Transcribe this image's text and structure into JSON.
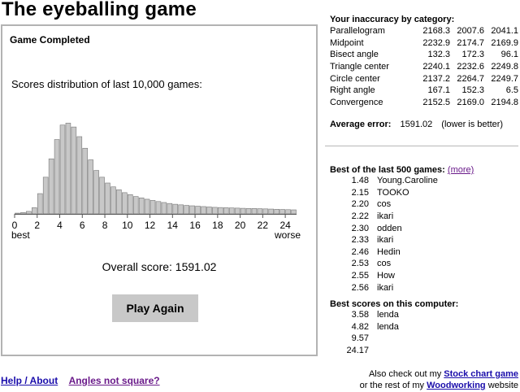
{
  "title": "The eyeballing game",
  "panel": {
    "heading": "Game Completed",
    "distribution_label": "Scores distribution of last 10,000 games:",
    "overall_label": "Overall score: 1591.02",
    "play_again": "Play Again"
  },
  "chart_data": {
    "type": "bar",
    "title": "Scores distribution of last 10,000 games:",
    "x_tick_labels": [
      "0",
      "2",
      "4",
      "6",
      "8",
      "10",
      "12",
      "14",
      "16",
      "18",
      "20",
      "22",
      "24"
    ],
    "x_left_label": "best",
    "x_right_label": "worse",
    "bin_width": 0.5,
    "x_start": 0,
    "values": [
      0.4,
      0.7,
      1.3,
      3.2,
      10.5,
      19.0,
      28.5,
      38.5,
      46.0,
      47.0,
      45.0,
      40.0,
      34.0,
      28.0,
      22.5,
      19.0,
      16.0,
      14.0,
      12.5,
      11.0,
      10.0,
      9.0,
      8.3,
      7.6,
      7.0,
      6.4,
      5.9,
      5.4,
      5.0,
      4.7,
      4.4,
      4.2,
      4.0,
      3.8,
      3.6,
      3.4,
      3.3,
      3.2,
      3.1,
      3.0,
      2.9,
      2.8,
      2.8,
      2.7,
      2.6,
      2.5,
      2.4,
      2.3,
      2.2,
      2.1
    ],
    "ylim": [
      0,
      48
    ],
    "bar_color": "#c8c8c8",
    "bar_border_color": "#777777"
  },
  "inaccuracy": {
    "heading": "Your inaccuracy by category:",
    "rows": [
      {
        "name": "Parallelogram",
        "v1": "2168.3",
        "v2": "2007.6",
        "v3": "2041.1"
      },
      {
        "name": "Midpoint",
        "v1": "2232.9",
        "v2": "2174.7",
        "v3": "2169.9"
      },
      {
        "name": "Bisect angle",
        "v1": "132.3",
        "v2": "172.3",
        "v3": "96.1"
      },
      {
        "name": "Triangle center",
        "v1": "2240.1",
        "v2": "2232.6",
        "v3": "2249.8"
      },
      {
        "name": "Circle center",
        "v1": "2137.2",
        "v2": "2264.7",
        "v3": "2249.7"
      },
      {
        "name": "Right angle",
        "v1": "167.1",
        "v2": "152.3",
        "v3": "6.5"
      },
      {
        "name": "Convergence",
        "v1": "2152.5",
        "v2": "2169.0",
        "v3": "2194.8"
      }
    ]
  },
  "average": {
    "label": "Average error:",
    "value": "1591.02",
    "note": "(lower is better)"
  },
  "best500": {
    "heading": "Best of the last 500 games:",
    "more": "(more)",
    "rows": [
      {
        "score": "1.48",
        "name": "Young.Caroline"
      },
      {
        "score": "2.15",
        "name": "TOOKO"
      },
      {
        "score": "2.20",
        "name": "cos"
      },
      {
        "score": "2.22",
        "name": "ikari"
      },
      {
        "score": "2.30",
        "name": "odden"
      },
      {
        "score": "2.33",
        "name": "ikari"
      },
      {
        "score": "2.46",
        "name": "Hedin"
      },
      {
        "score": "2.53",
        "name": "cos"
      },
      {
        "score": "2.55",
        "name": "How"
      },
      {
        "score": "2.56",
        "name": "ikari"
      }
    ]
  },
  "bestcomputer": {
    "heading": "Best scores on this computer:",
    "rows": [
      {
        "score": "3.58",
        "name": "lenda"
      },
      {
        "score": "4.82",
        "name": "lenda"
      },
      {
        "score": "9.57",
        "name": ""
      },
      {
        "score": "24.17",
        "name": ""
      }
    ]
  },
  "footer": {
    "help": "Help / About",
    "angles": "Angles not square?",
    "also_prefix": "Also check out my",
    "stock_link": "Stock chart game",
    "rest_prefix": "or the rest of my",
    "woodworking_link": "Woodworking",
    "rest_suffix": "website"
  }
}
